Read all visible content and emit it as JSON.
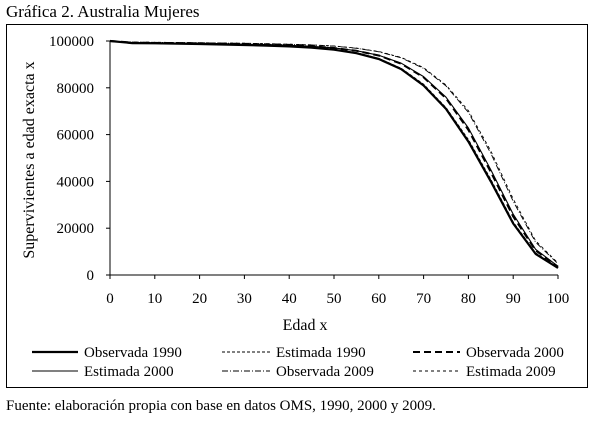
{
  "figure_title": "Gráfica 2. Australia Mujeres",
  "source_note": "Fuente: elaboración propia con base en datos OMS, 1990, 2000 y 2009.",
  "chart_data": {
    "type": "line",
    "title": "",
    "xlabel": "Edad x",
    "ylabel": "Supervivientes a edad exacta x",
    "xlim": [
      0,
      100
    ],
    "ylim": [
      0,
      100000
    ],
    "xticks": [
      0,
      10,
      20,
      30,
      40,
      50,
      60,
      70,
      80,
      90,
      100
    ],
    "yticks": [
      0,
      20000,
      40000,
      60000,
      80000,
      100000
    ],
    "grid": false,
    "legend_position": "bottom",
    "x": [
      0,
      5,
      10,
      15,
      20,
      25,
      30,
      35,
      40,
      45,
      50,
      55,
      60,
      65,
      70,
      75,
      80,
      85,
      90,
      95,
      100
    ],
    "series": [
      {
        "name": "Observada 1990",
        "style": "solid-thick",
        "values": [
          100000,
          99100,
          99000,
          98900,
          98700,
          98500,
          98300,
          98000,
          97700,
          97200,
          96300,
          94800,
          92300,
          88000,
          81000,
          71000,
          57000,
          40000,
          22000,
          9000,
          3000
        ]
      },
      {
        "name": "Estimada 1990",
        "style": "dashed-fine",
        "values": [
          100000,
          99150,
          99050,
          98950,
          98750,
          98550,
          98350,
          98050,
          97750,
          97250,
          96350,
          94950,
          92500,
          88300,
          81500,
          71500,
          57800,
          40800,
          22600,
          9400,
          3200
        ]
      },
      {
        "name": "Observada 2000",
        "style": "dashed-thick",
        "values": [
          100000,
          99300,
          99200,
          99100,
          99000,
          98800,
          98600,
          98400,
          98100,
          97700,
          97000,
          95800,
          93800,
          90300,
          84500,
          75500,
          62000,
          44000,
          25000,
          10500,
          3500
        ]
      },
      {
        "name": "Estimada 2000",
        "style": "solid-thin",
        "values": [
          100000,
          99350,
          99250,
          99150,
          99050,
          98850,
          98650,
          98450,
          98150,
          97750,
          97050,
          95850,
          93900,
          90500,
          84800,
          76000,
          62800,
          45000,
          26000,
          11000,
          3700
        ]
      },
      {
        "name": "Observada 2009",
        "style": "dashdot",
        "values": [
          100000,
          99500,
          99400,
          99300,
          99200,
          99100,
          99000,
          98800,
          98600,
          98300,
          97800,
          96900,
          95400,
          92800,
          88300,
          80800,
          69500,
          52000,
          31500,
          14000,
          4800
        ]
      },
      {
        "name": "Estimada 2009",
        "style": "dashed-thin",
        "values": [
          100000,
          99550,
          99450,
          99350,
          99250,
          99150,
          99050,
          98850,
          98650,
          98350,
          97850,
          96950,
          95500,
          93000,
          88600,
          81200,
          70200,
          53000,
          32500,
          14600,
          5100
        ]
      }
    ]
  }
}
